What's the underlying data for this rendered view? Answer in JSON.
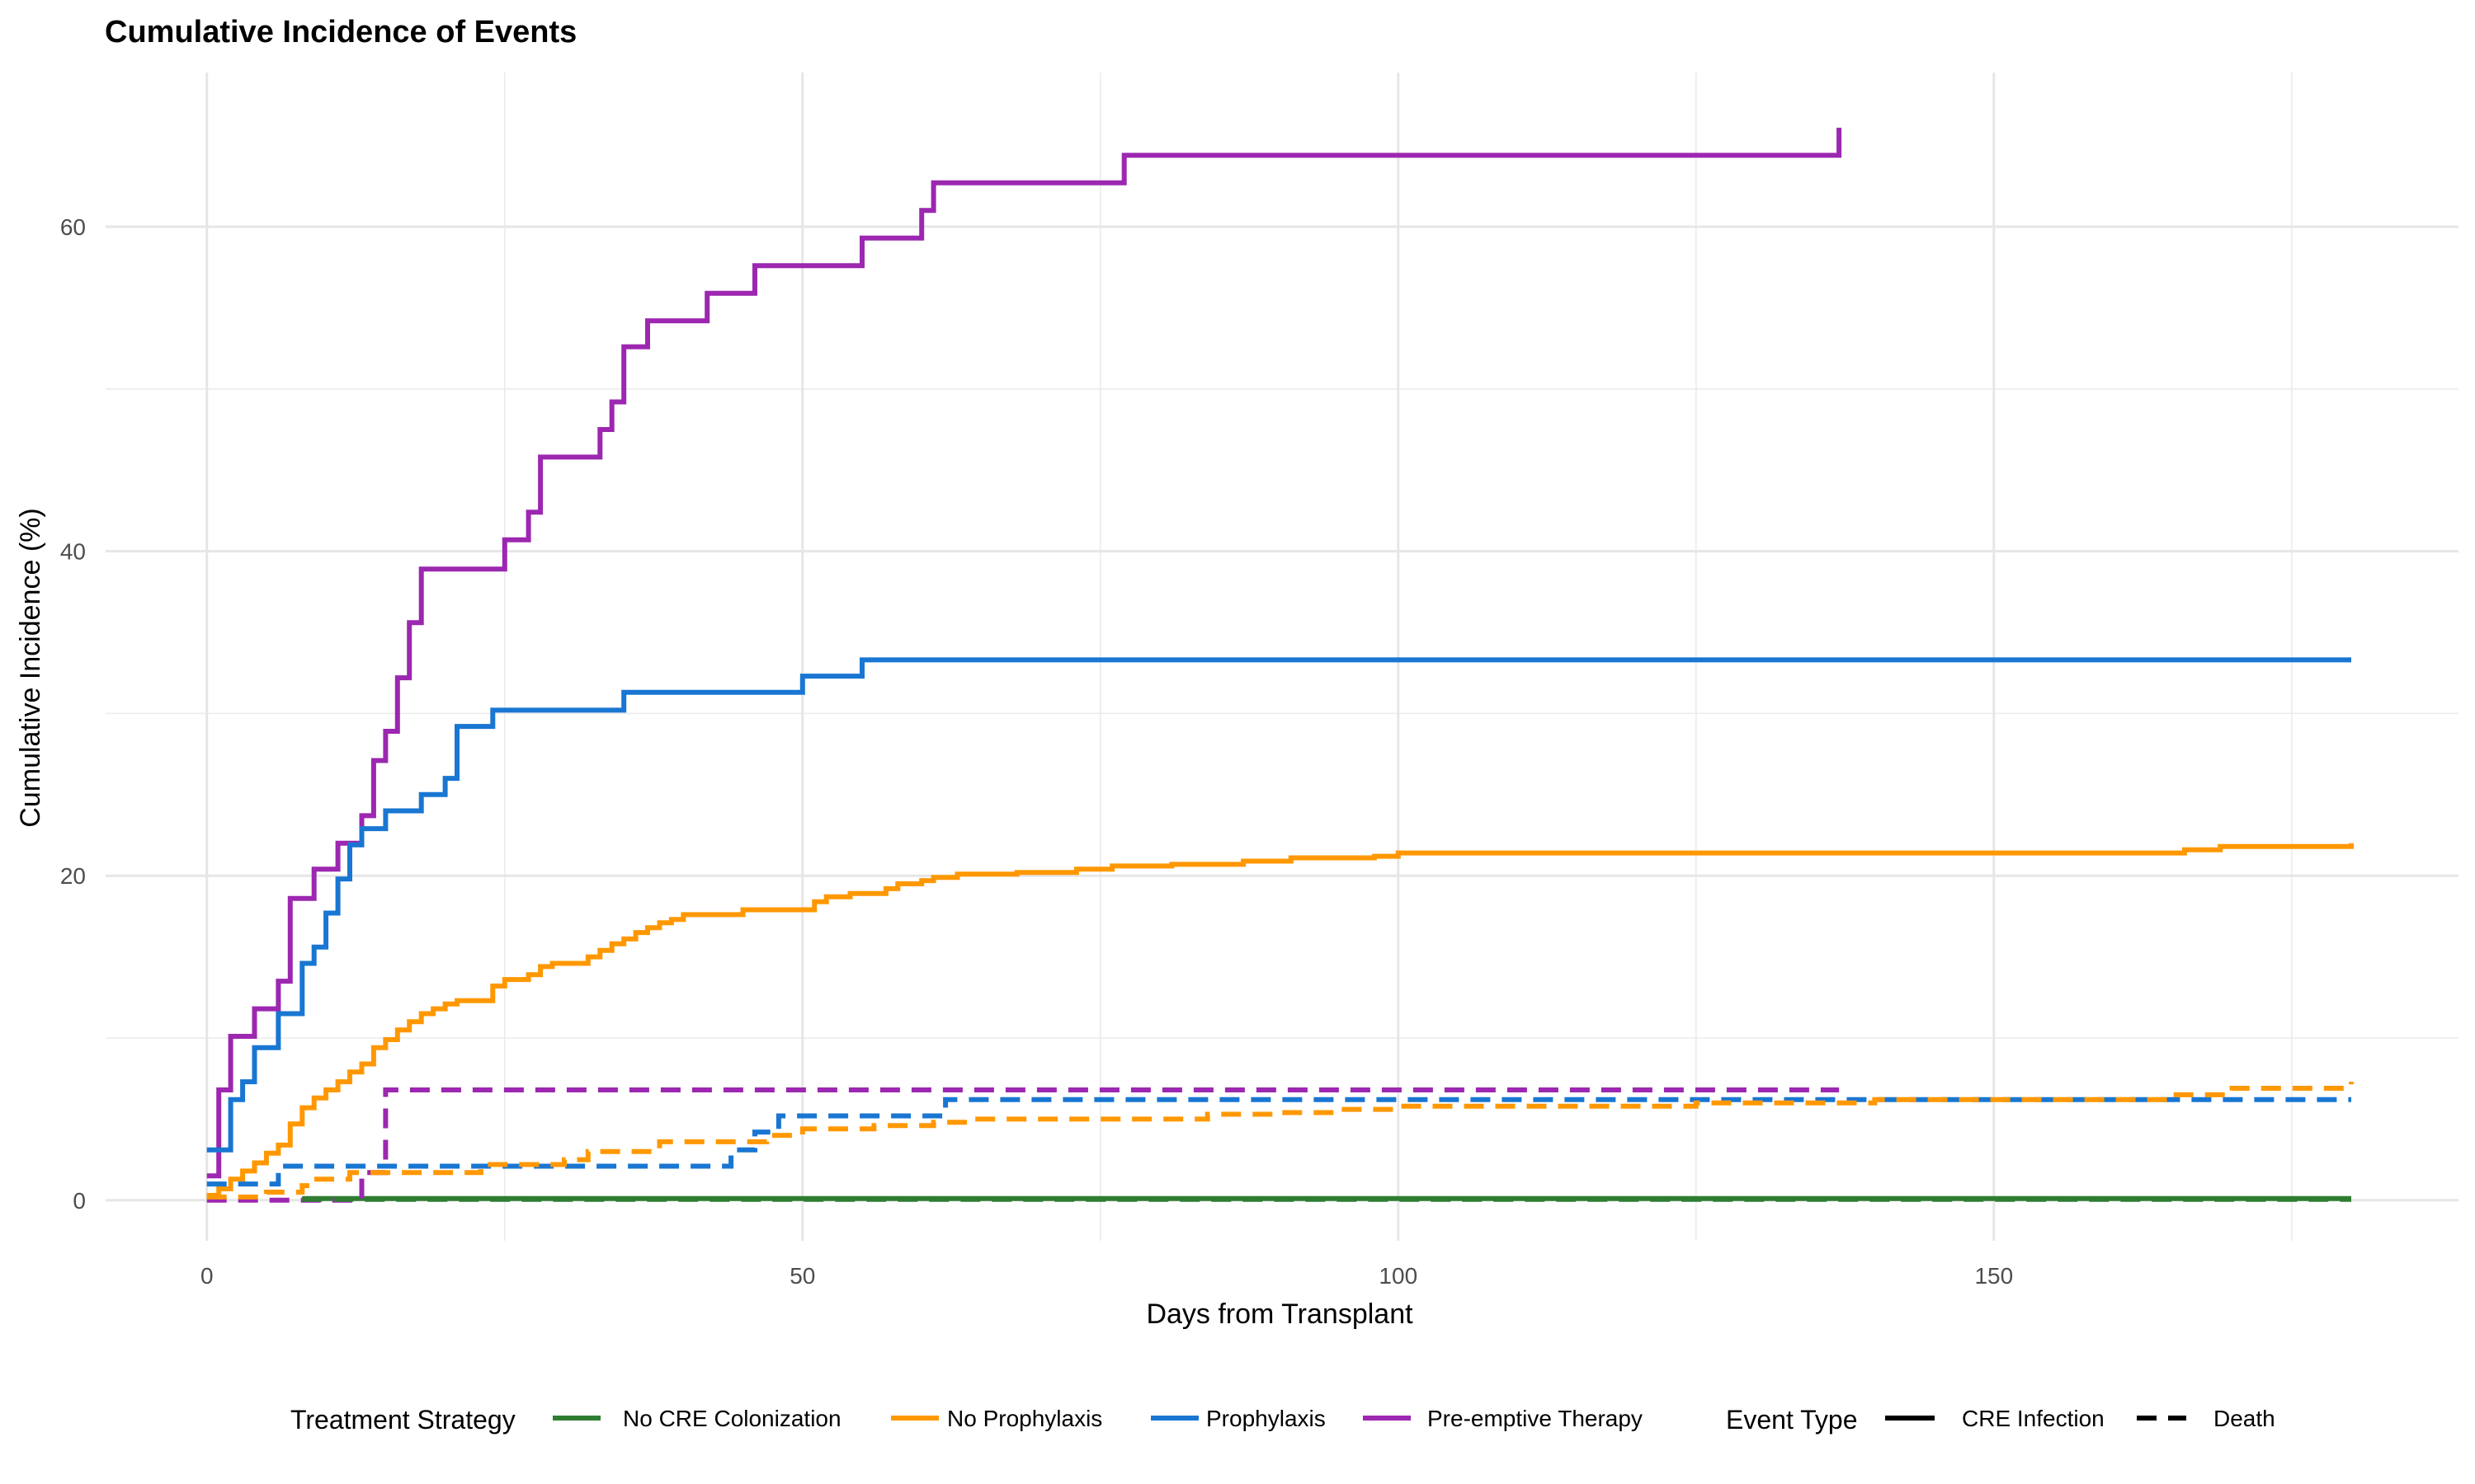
{
  "chart_data": {
    "type": "line",
    "title": "Cumulative Incidence of Events",
    "xlabel": "Days from Transplant",
    "ylabel": "Cumulative Incidence (%)",
    "xlim": [
      -8.5,
      189
    ],
    "ylim": [
      -2.5,
      69.5
    ],
    "xticks": [
      0,
      50,
      100,
      150
    ],
    "xticks_minor": [
      25,
      75,
      125,
      175
    ],
    "yticks": [
      0,
      20,
      40,
      60
    ],
    "yticks_minor": [
      10,
      30,
      50
    ],
    "grid": true,
    "legend_position": "bottom",
    "legend": {
      "color_title": "Treatment Strategy",
      "linetype_title": "Event Type",
      "linetypes": [
        {
          "name": "CRE Infection",
          "dash": "solid"
        },
        {
          "name": "Death",
          "dash": "dashed"
        }
      ]
    },
    "series": [
      {
        "name": "Pre-emptive Therapy",
        "event": "CRE Infection",
        "color": "#9C27B0",
        "step_x": [
          0,
          1,
          2,
          4,
          6,
          7,
          9,
          11,
          13,
          14,
          15,
          16,
          17,
          18,
          25,
          27,
          28,
          33,
          34,
          35,
          37,
          42,
          46,
          55,
          60,
          61,
          77,
          137,
          137
        ],
        "step_y": [
          1.5,
          6.8,
          10.1,
          11.8,
          13.5,
          18.6,
          20.4,
          22.0,
          23.7,
          27.1,
          28.9,
          32.2,
          35.6,
          38.9,
          40.7,
          42.4,
          45.8,
          47.5,
          49.2,
          52.6,
          54.2,
          55.9,
          57.6,
          59.3,
          61.0,
          62.7,
          64.4,
          64.4,
          66.1
        ]
      },
      {
        "name": "Prophylaxis",
        "event": "CRE Infection",
        "color": "#1976D2",
        "step_x": [
          0,
          2,
          3,
          4,
          6,
          8,
          9,
          10,
          11,
          12,
          13,
          15,
          18,
          20,
          21,
          24,
          35,
          50,
          55,
          180
        ],
        "step_y": [
          3.1,
          6.2,
          7.3,
          9.4,
          11.5,
          14.6,
          15.6,
          17.7,
          19.8,
          21.9,
          22.9,
          24.0,
          25.0,
          26.0,
          29.2,
          30.2,
          31.3,
          32.3,
          33.3,
          33.3
        ]
      },
      {
        "name": "No Prophylaxis",
        "event": "CRE Infection",
        "color": "#FF9800",
        "step_x": [
          0,
          1,
          2,
          3,
          4,
          5,
          6,
          7,
          8,
          9,
          10,
          11,
          12,
          13,
          14,
          15,
          16,
          17,
          18,
          19,
          20,
          21,
          24,
          25,
          27,
          28,
          29,
          32,
          33,
          34,
          35,
          36,
          37,
          38,
          39,
          40,
          45,
          51,
          52,
          54,
          57,
          58,
          60,
          61,
          63,
          68,
          73,
          76,
          81,
          87,
          91,
          98,
          100,
          166,
          169,
          180
        ],
        "step_y": [
          0.3,
          0.7,
          1.3,
          1.8,
          2.3,
          2.9,
          3.4,
          4.7,
          5.7,
          6.3,
          6.8,
          7.3,
          7.9,
          8.4,
          9.4,
          9.9,
          10.5,
          11.0,
          11.5,
          11.8,
          12.1,
          12.3,
          13.2,
          13.6,
          13.9,
          14.4,
          14.6,
          15.0,
          15.4,
          15.8,
          16.1,
          16.5,
          16.8,
          17.1,
          17.3,
          17.6,
          17.9,
          18.4,
          18.7,
          18.9,
          19.2,
          19.5,
          19.7,
          19.9,
          20.1,
          20.2,
          20.4,
          20.6,
          20.7,
          20.9,
          21.1,
          21.2,
          21.4,
          21.6,
          21.8,
          22.0
        ]
      },
      {
        "name": "No CRE Colonization",
        "event": "CRE Infection",
        "color": "#2E7D32",
        "step_x": [
          8,
          180
        ],
        "step_y": [
          0.1,
          0.1
        ]
      },
      {
        "name": "Pre-emptive Therapy",
        "event": "Death",
        "color": "#9C27B0",
        "step_x": [
          0,
          13,
          15,
          137
        ],
        "step_y": [
          0,
          1.7,
          6.8,
          6.8
        ]
      },
      {
        "name": "Prophylaxis",
        "event": "Death",
        "color": "#1976D2",
        "step_x": [
          0,
          1,
          6,
          44,
          46,
          48,
          62,
          180
        ],
        "step_y": [
          1.0,
          1.0,
          2.1,
          3.1,
          4.2,
          5.2,
          6.2,
          6.2
        ]
      },
      {
        "name": "No Prophylaxis",
        "event": "Death",
        "color": "#FF9800",
        "step_x": [
          0,
          5,
          8,
          9,
          12,
          23,
          30,
          32,
          38,
          47,
          50,
          56,
          61,
          64,
          84,
          90,
          95,
          100,
          125,
          140,
          165,
          170,
          180
        ],
        "step_y": [
          0.2,
          0.5,
          0.9,
          1.3,
          1.7,
          2.2,
          2.5,
          3.0,
          3.6,
          4.0,
          4.4,
          4.6,
          4.8,
          5.0,
          5.3,
          5.4,
          5.6,
          5.8,
          6.0,
          6.2,
          6.5,
          6.9,
          7.3
        ]
      },
      {
        "name": "No CRE Colonization",
        "event": "Death",
        "color": "#2E7D32",
        "step_x": [
          8,
          180
        ],
        "step_y": [
          0.05,
          0.05
        ]
      }
    ],
    "legend_items": [
      {
        "name": "No CRE Colonization",
        "color": "#2E7D32"
      },
      {
        "name": "No Prophylaxis",
        "color": "#FF9800"
      },
      {
        "name": "Prophylaxis",
        "color": "#1976D2"
      },
      {
        "name": "Pre-emptive Therapy",
        "color": "#9C27B0"
      }
    ]
  }
}
